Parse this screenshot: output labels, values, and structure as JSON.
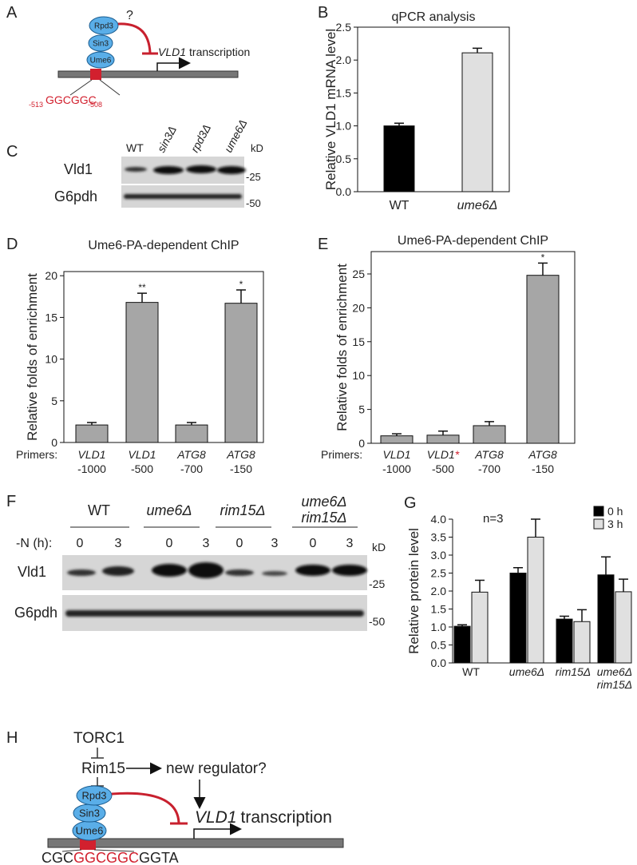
{
  "panel_labels": [
    "A",
    "B",
    "C",
    "D",
    "E",
    "F",
    "G",
    "H"
  ],
  "diagram_a": {
    "proteins": [
      "Rpd3",
      "Sin3",
      "Ume6"
    ],
    "question": "?",
    "gene": "VLD1",
    "transcription": "transcription",
    "start": "-513",
    "motif": "GGCGGC",
    "end": "-508"
  },
  "blot_c": {
    "lanes": [
      "WT",
      "sin3Δ",
      "rpd3Δ",
      "ume6Δ"
    ],
    "kd_label": "kD",
    "rows": [
      "Vld1",
      "G6pdh"
    ],
    "markers": [
      "-25",
      "-50"
    ]
  },
  "blot_f": {
    "groups": [
      [
        "WT"
      ],
      [
        "ume6Δ"
      ],
      [
        "rim15Δ"
      ],
      [
        "ume6Δ",
        "rim15Δ"
      ]
    ],
    "time_label": "-N (h):",
    "times": [
      "0",
      "3",
      "0",
      "3",
      "0",
      "3",
      "0",
      "3"
    ],
    "kd_label": "kD",
    "rows": [
      "Vld1",
      "G6pdh"
    ],
    "markers": [
      "-25",
      "-50"
    ]
  },
  "diagram_h": {
    "torc1": "TORC1",
    "rim15": "Rim15",
    "regulator": "new regulator?",
    "proteins": [
      "Rpd3",
      "Sin3",
      "Ume6"
    ],
    "gene": "VLD1",
    "transcription": "transcription",
    "sequence": [
      "CGC",
      "GGCGGC",
      "GGTA"
    ]
  },
  "chart_data": [
    {
      "type": "bar",
      "title": "qPCR analysis",
      "ylabel": "Relative VLD1 mRNA level",
      "categories": [
        [
          "WT"
        ],
        [
          "ume6Δ"
        ]
      ],
      "values": [
        1.0,
        2.11
      ],
      "errors": [
        0.04,
        0.07
      ],
      "colors": [
        "#000000",
        "#e0e0e0"
      ],
      "ylim": [
        0,
        2.5
      ],
      "yticks": [
        {
          "value": 0,
          "label": "0.0"
        },
        0.5,
        {
          "value": 1,
          "label": "1.0"
        },
        1.5,
        {
          "value": 2,
          "label": "2.0"
        },
        2.5
      ]
    },
    {
      "type": "bar",
      "title": "Ume6-PA-dependent ChIP",
      "ylabel": "Relative folds of enrichment",
      "primers_label": "Primers:",
      "categories": [
        [
          "VLD1",
          "-1000"
        ],
        [
          "VLD1",
          "-500"
        ],
        [
          "ATG8",
          "-700"
        ],
        [
          "ATG8",
          "-150"
        ]
      ],
      "values": [
        2.1,
        16.8,
        2.1,
        16.7
      ],
      "errors": [
        0.3,
        1.1,
        0.3,
        1.6
      ],
      "significance": [
        null,
        "**",
        null,
        "*"
      ],
      "colors": [
        "#a6a6a6",
        "#a6a6a6",
        "#a6a6a6",
        "#a6a6a6"
      ],
      "ylim": [
        0,
        20.5
      ],
      "yticks": [
        0,
        5,
        10,
        15,
        20
      ]
    },
    {
      "type": "bar",
      "title": "Ume6-PA-dependent ChIP",
      "ylabel": "Relative folds of enrichment",
      "primers_label": "Primers:",
      "categories": [
        [
          "VLD1",
          "-1000"
        ],
        [
          "VLD1*",
          "-500"
        ],
        [
          "ATG8",
          "-700"
        ],
        [
          "ATG8",
          "-150"
        ]
      ],
      "values": [
        1.1,
        1.2,
        2.6,
        24.8
      ],
      "errors": [
        0.3,
        0.6,
        0.6,
        1.8
      ],
      "significance": [
        null,
        null,
        null,
        "*"
      ],
      "colors": [
        "#a6a6a6",
        "#a6a6a6",
        "#a6a6a6",
        "#a6a6a6"
      ],
      "ylim": [
        0,
        28.3
      ],
      "yticks": [
        0,
        5,
        10,
        15,
        20,
        25
      ]
    },
    {
      "type": "grouped-bar",
      "ylabel": "Relative protein level",
      "annotation": "n=3",
      "legend": "top-right",
      "categories": [
        [
          "WT"
        ],
        [
          "ume6Δ"
        ],
        [
          "rim15Δ"
        ],
        [
          "ume6Δ",
          "rim15Δ"
        ]
      ],
      "series": [
        {
          "name": "0 h",
          "color": "#000000",
          "values": [
            1.02,
            2.5,
            1.22,
            2.45
          ],
          "errors": [
            0.04,
            0.15,
            0.08,
            0.5
          ]
        },
        {
          "name": "3 h",
          "color": "#e0e0e0",
          "values": [
            1.97,
            3.5,
            1.15,
            1.98
          ],
          "errors": [
            0.33,
            0.5,
            0.33,
            0.35
          ]
        }
      ],
      "ylim": [
        0,
        4
      ],
      "yticks": [
        {
          "value": 0,
          "label": "0.0"
        },
        0.5,
        {
          "value": 1,
          "label": "1.0"
        },
        1.5,
        {
          "value": 2,
          "label": "2.0"
        },
        2.5,
        {
          "value": 3,
          "label": "3.0"
        },
        3.5,
        {
          "value": 4,
          "label": "4.0"
        }
      ]
    }
  ]
}
